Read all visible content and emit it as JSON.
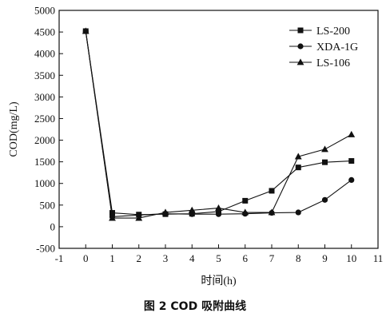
{
  "chart_data": {
    "type": "line",
    "xlabel": "时间(h)",
    "ylabel": "COD(mg/L)",
    "caption": "图 2   COD 吸附曲线",
    "xlim": [
      -1,
      11
    ],
    "ylim": [
      -500,
      5000
    ],
    "xticks": [
      -1,
      0,
      1,
      2,
      3,
      4,
      5,
      6,
      7,
      8,
      9,
      10,
      11
    ],
    "yticks": [
      -500,
      0,
      500,
      1000,
      1500,
      2000,
      2500,
      3000,
      3500,
      4000,
      4500,
      5000
    ],
    "grid": false,
    "legend_position": "top-right",
    "x": [
      0,
      1,
      2,
      3,
      4,
      5,
      6,
      7,
      8,
      9,
      10
    ],
    "series": [
      {
        "name": "LS-200",
        "marker": "square",
        "values": [
          4520,
          320,
          280,
          290,
          300,
          350,
          600,
          830,
          1370,
          1490,
          1520
        ]
      },
      {
        "name": "XDA-1G",
        "marker": "circle",
        "values": [
          4520,
          230,
          270,
          300,
          290,
          290,
          300,
          320,
          330,
          620,
          1080
        ]
      },
      {
        "name": "LS-106",
        "marker": "triangle",
        "values": [
          4520,
          200,
          200,
          330,
          380,
          430,
          330,
          330,
          1620,
          1790,
          2130
        ]
      }
    ]
  }
}
